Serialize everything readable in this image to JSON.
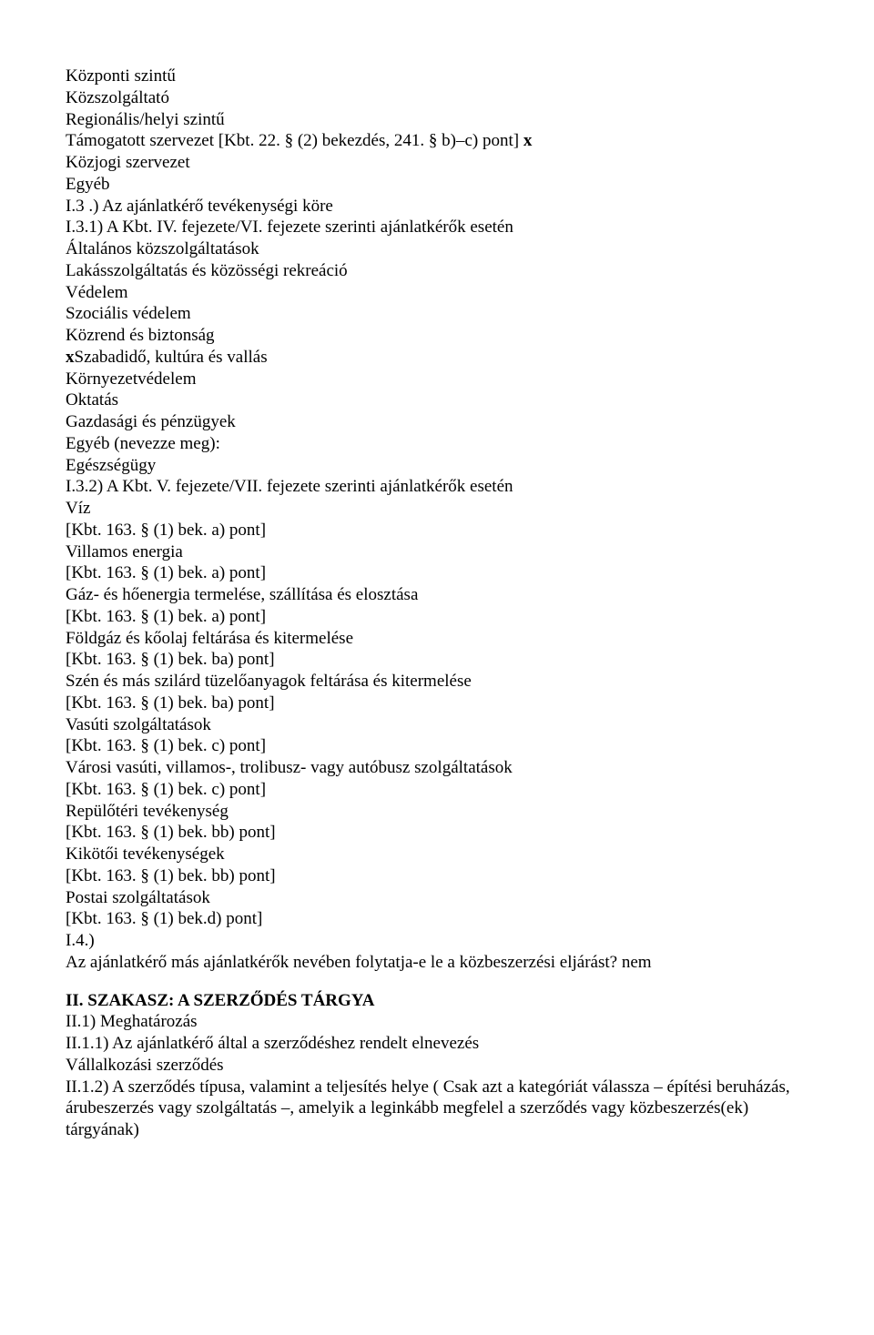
{
  "lines": [
    {
      "t": "Központi szintű"
    },
    {
      "t": "Közszolgáltató"
    },
    {
      "t": "Regionális/helyi szintű"
    },
    {
      "t": "Támogatott szervezet [Kbt. 22. § (2) bekezdés, 241. § b)–c) pont] ",
      "suffixBold": "x"
    },
    {
      "t": "Közjogi szervezet"
    },
    {
      "t": "Egyéb"
    },
    {
      "t": "I.3 .) Az ajánlatkérő tevékenységi köre"
    },
    {
      "t": "I.3.1) A Kbt. IV. fejezete/VI. fejezete szerinti ajánlatkérők esetén"
    },
    {
      "t": "Általános közszolgáltatások"
    },
    {
      "t": "Lakásszolgáltatás és közösségi rekreáció"
    },
    {
      "t": "Védelem"
    },
    {
      "t": "Szociális védelem"
    },
    {
      "t": "Közrend és biztonság"
    },
    {
      "prefixBold": "x",
      "t": "Szabadidő, kultúra és vallás"
    },
    {
      "t": "Környezetvédelem"
    },
    {
      "t": "Oktatás"
    },
    {
      "t": "Gazdasági és pénzügyek"
    },
    {
      "t": "Egyéb (nevezze meg):"
    },
    {
      "t": "Egészségügy"
    },
    {
      "t": "I.3.2) A Kbt. V. fejezete/VII. fejezete szerinti ajánlatkérők esetén"
    },
    {
      "t": "Víz"
    },
    {
      "t": "[Kbt. 163. § (1) bek. a) pont]"
    },
    {
      "t": "Villamos energia"
    },
    {
      "t": "[Kbt. 163. § (1) bek. a) pont]"
    },
    {
      "t": "Gáz- és hőenergia termelése, szállítása és elosztása"
    },
    {
      "t": "[Kbt. 163. § (1) bek. a) pont]"
    },
    {
      "t": "Földgáz és kőolaj feltárása és kitermelése"
    },
    {
      "t": "[Kbt. 163. § (1) bek. ba) pont]"
    },
    {
      "t": "Szén és más szilárd tüzelőanyagok feltárása és kitermelése"
    },
    {
      "t": "[Kbt. 163. § (1) bek. ba) pont]"
    },
    {
      "t": "Vasúti szolgáltatások"
    },
    {
      "t": "[Kbt. 163. § (1) bek. c) pont]"
    },
    {
      "t": "Városi vasúti, villamos-, trolibusz- vagy autóbusz szolgáltatások"
    },
    {
      "t": "[Kbt. 163. § (1) bek. c) pont]"
    },
    {
      "t": "Repülőtéri tevékenység"
    },
    {
      "t": "[Kbt. 163. § (1) bek. bb) pont]"
    },
    {
      "t": "Kikötői tevékenységek"
    },
    {
      "t": "[Kbt. 163. § (1) bek. bb) pont]"
    },
    {
      "t": "Postai szolgáltatások"
    },
    {
      "t": "[Kbt. 163. § (1) bek.d) pont]"
    },
    {
      "t": "I.4.)"
    },
    {
      "t": "Az ajánlatkérő más ajánlatkérők nevében folytatja-e le a közbeszerzési eljárást? nem"
    }
  ],
  "section2": {
    "head": "II. SZAKASZ: A SZERZŐDÉS TÁRGYA",
    "l1": "II.1) Meghatározás",
    "l2": "II.1.1) Az ajánlatkérő által a szerződéshez rendelt elnevezés",
    "l3": "Vállalkozási szerződés",
    "l4": "II.1.2) A szerződés típusa, valamint a teljesítés helye ( Csak azt a kategóriát válassza – építési beruházás, árubeszerzés vagy szolgáltatás –, amelyik a leginkább megfelel a szerződés vagy közbeszerzés(ek) tárgyának)"
  }
}
